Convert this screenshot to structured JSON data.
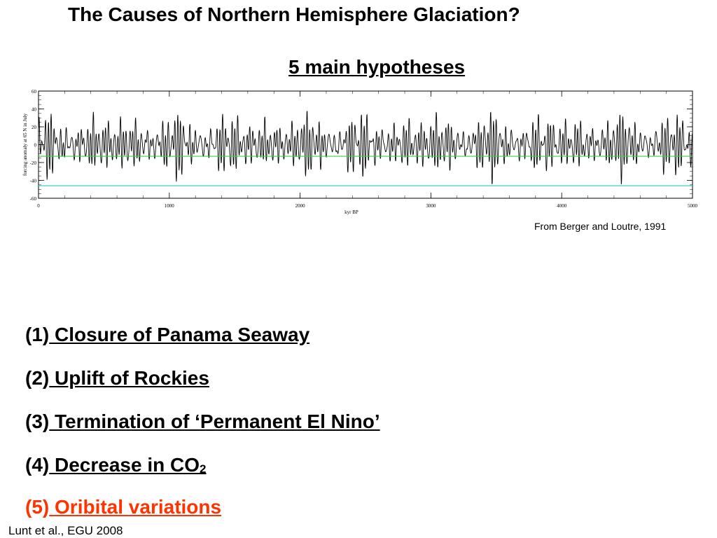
{
  "title": "The Causes of Northern Hemisphere Glaciation?",
  "subtitle": "5 main hypotheses",
  "credit": "From Berger and Loutre, 1991",
  "hypotheses": [
    {
      "num": "(1)",
      "text": " Closure of Panama Seaway"
    },
    {
      "num": "(2)",
      "text": " Uplift of Rockies"
    },
    {
      "num": "(3)",
      "text": " Termination of ‘Permanent El Nino’"
    },
    {
      "num": "(4)",
      "text": " Decrease in CO",
      "sub": "2"
    },
    {
      "num": "(5)",
      "text": " Oribital variations"
    }
  ],
  "highlight_color": "#ff3300",
  "footer": "Lunt et al., EGU 2008",
  "chart_data": {
    "type": "line",
    "xlabel": "kyr BP",
    "ylabel": "forcing anomaly at 65 N in July",
    "xlim": [
      0,
      5000
    ],
    "ylim": [
      -60,
      60
    ],
    "x_ticks": [
      "0",
      "1000",
      "2000",
      "3000",
      "4000",
      "5000"
    ],
    "y_ticks": [
      "60",
      "40",
      "20",
      "0",
      "-20",
      "-40",
      "-60"
    ],
    "reference_lines": [
      {
        "value": -13,
        "color": "#44cc44"
      },
      {
        "value": -46,
        "color": "#44cccc"
      }
    ],
    "series_color": "#000000",
    "amplitude_range": [
      -50,
      60
    ]
  }
}
